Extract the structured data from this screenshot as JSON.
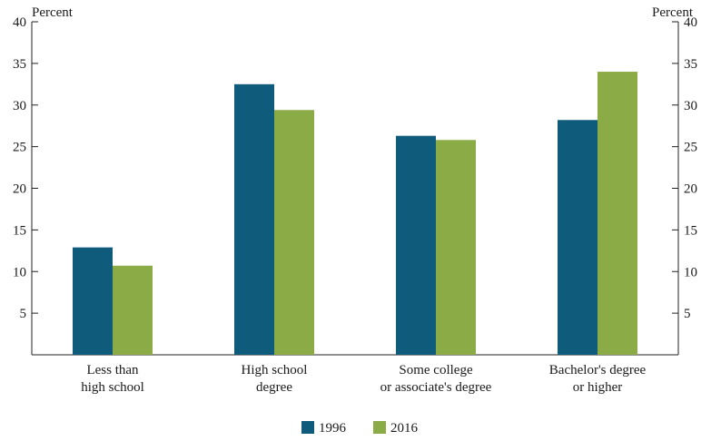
{
  "chart_data": {
    "type": "bar",
    "title": "",
    "ylabel_left": "Percent",
    "ylabel_right": "Percent",
    "ylim": [
      0,
      40
    ],
    "yticks": [
      5,
      10,
      15,
      20,
      25,
      30,
      35,
      40
    ],
    "grid": false,
    "legend_position": "bottom-center",
    "categories": [
      [
        "Less than",
        "high school"
      ],
      [
        "High school",
        "degree"
      ],
      [
        "Some college",
        "or associate's degree"
      ],
      [
        "Bachelor's degree",
        "or higher"
      ]
    ],
    "series": [
      {
        "name": "1996",
        "color": "#0f5b7b",
        "values": [
          12.9,
          32.5,
          26.3,
          28.2
        ]
      },
      {
        "name": "2016",
        "color": "#8aab46",
        "values": [
          10.7,
          29.4,
          25.8,
          34.0
        ]
      }
    ]
  }
}
